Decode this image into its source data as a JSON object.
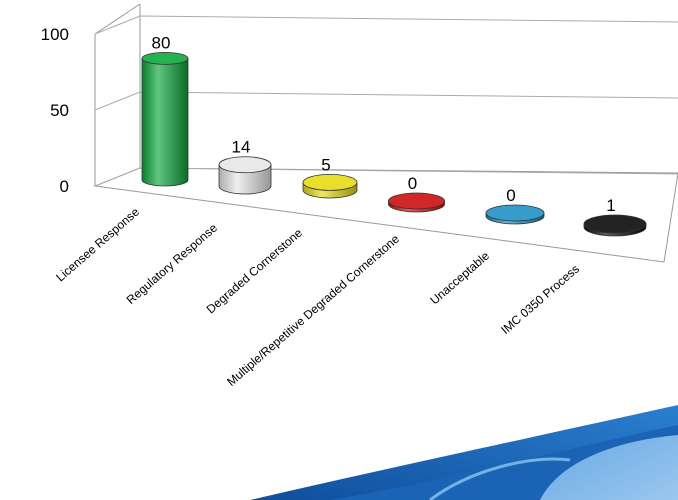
{
  "chart_data": {
    "type": "bar",
    "style": "3d-cylinder",
    "title": "",
    "xlabel": "",
    "ylabel": "",
    "ylim": [
      0,
      100
    ],
    "yticks": [
      0,
      50,
      100
    ],
    "grid": true,
    "legend": "none",
    "categories": [
      "Licensee Response",
      "Regulatory Response",
      "Degraded Cornerstone",
      "Multiple/Repetitive Degraded Cornerstone",
      "Unacceptable",
      "IMC 0350 Process"
    ],
    "values": [
      80,
      14,
      5,
      0,
      0,
      1
    ],
    "value_labels": [
      "80",
      "14",
      "5",
      "0",
      "0",
      "1"
    ],
    "colors": [
      "#0aa83a",
      "#e6e6e6",
      "#e6dc12",
      "#cc0a0a",
      "#1a8fc4",
      "#050505"
    ]
  }
}
